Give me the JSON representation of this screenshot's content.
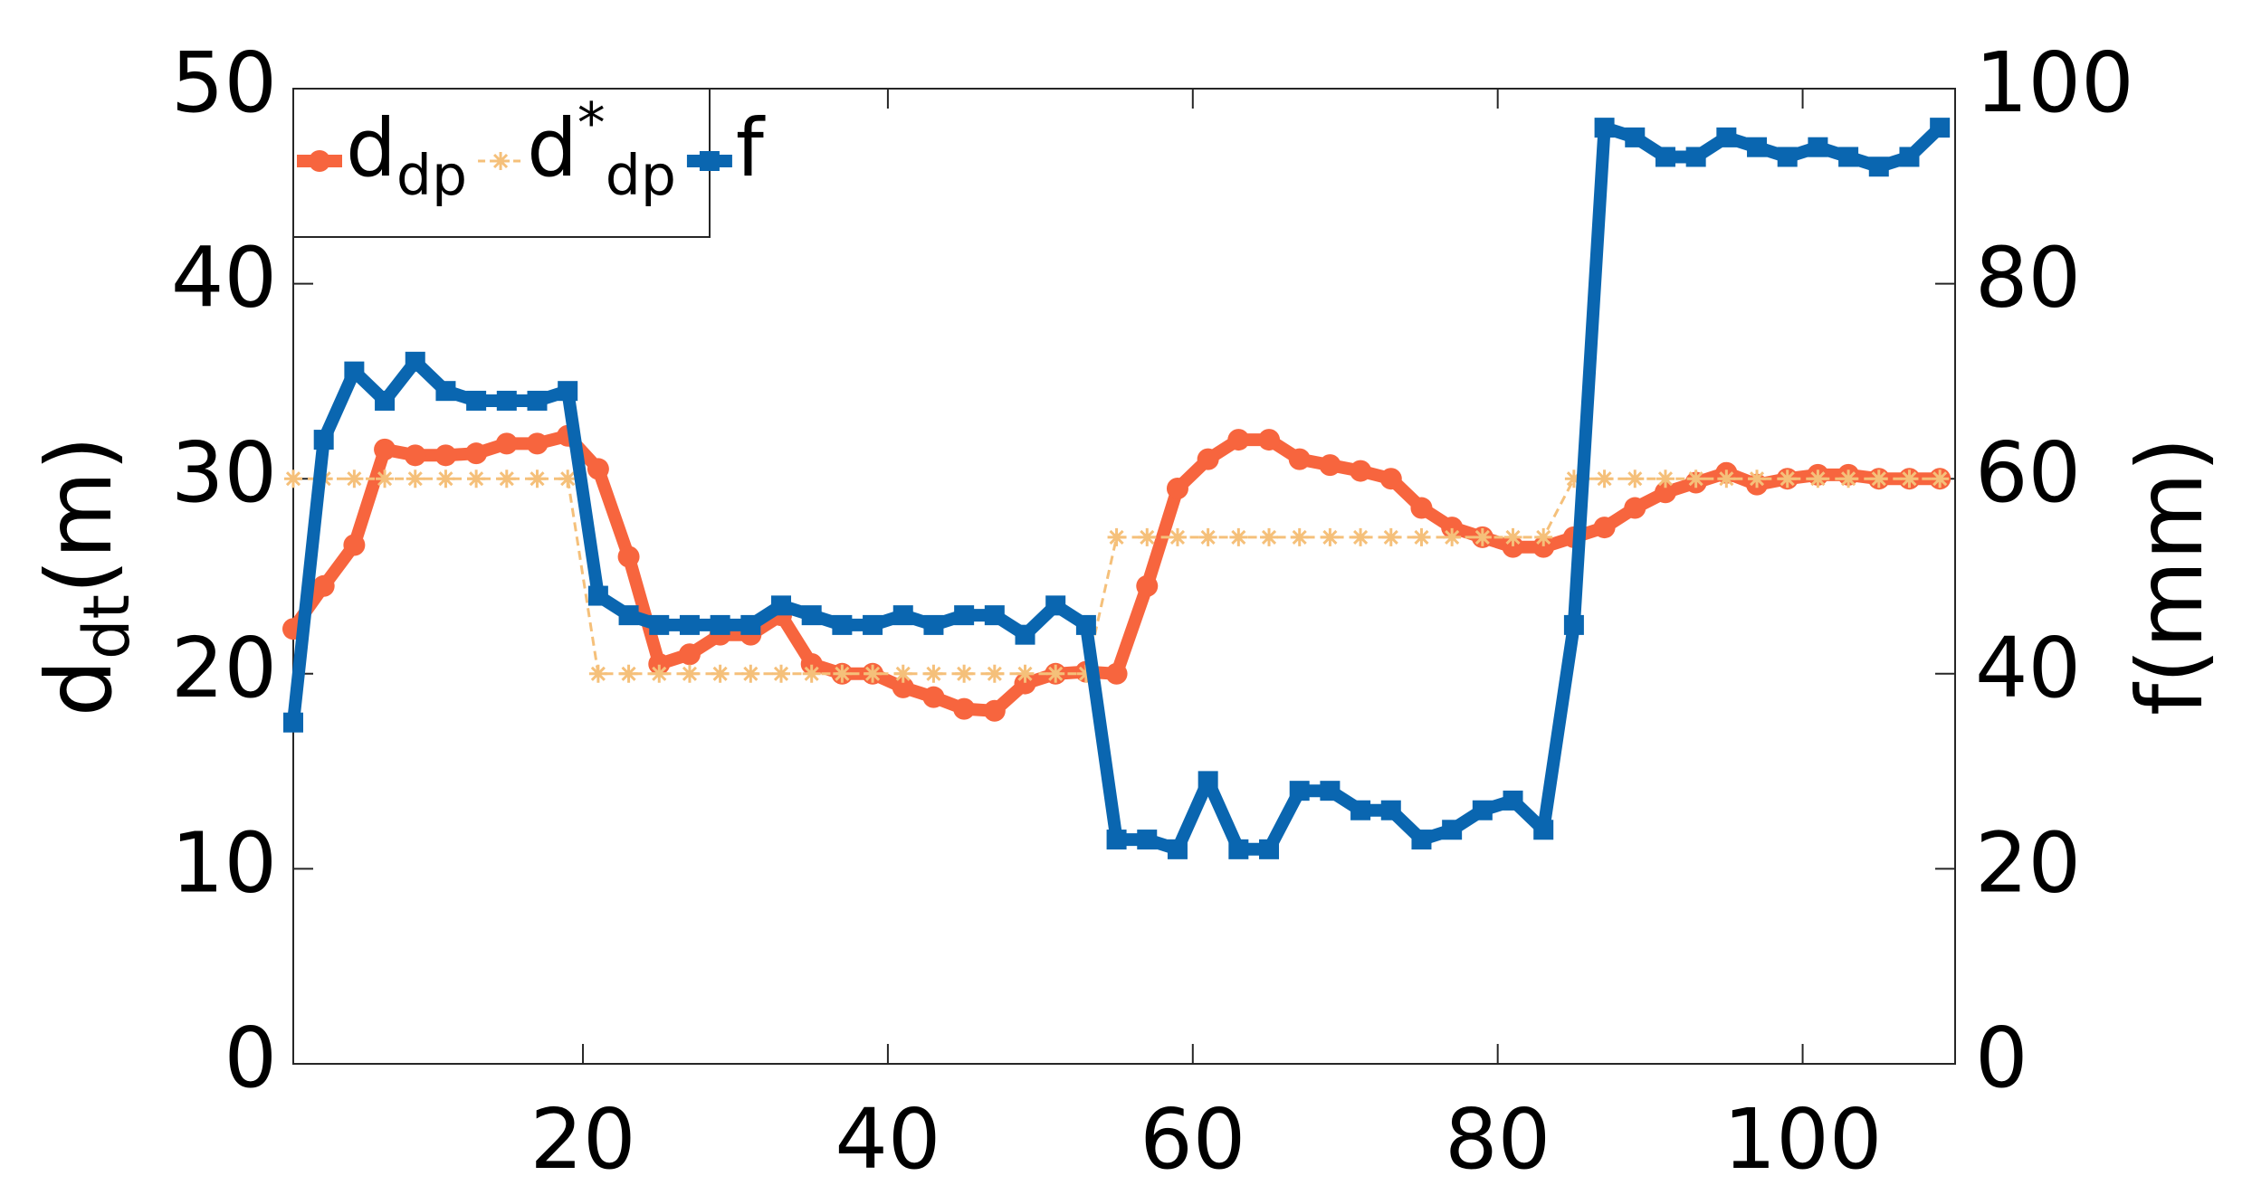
{
  "chart_data": {
    "type": "line",
    "x": [
      1,
      3,
      5,
      7,
      9,
      11,
      13,
      15,
      17,
      19,
      21,
      23,
      25,
      27,
      29,
      31,
      33,
      35,
      37,
      39,
      41,
      43,
      45,
      47,
      49,
      51,
      53,
      55,
      57,
      59,
      61,
      63,
      65,
      67,
      69,
      71,
      73,
      75,
      77,
      79,
      81,
      83,
      85,
      87,
      89,
      91,
      93,
      95,
      97,
      99,
      101,
      103,
      105,
      107,
      109
    ],
    "series": [
      {
        "name": "d_dp",
        "color": "#f7653e",
        "marker": "circle",
        "values": [
          22.3,
          24.5,
          26.6,
          31.5,
          31.2,
          31.2,
          31.3,
          31.8,
          31.8,
          32.2,
          30.5,
          26,
          20.5,
          21,
          22,
          22,
          23,
          20.5,
          20,
          20,
          19.3,
          18.8,
          18.2,
          18.1,
          19.5,
          20,
          20.1,
          20,
          24.5,
          29.5,
          31,
          32,
          32,
          31,
          30.7,
          30.4,
          30,
          28.5,
          27.5,
          27,
          26.5,
          26.5,
          27,
          27.5,
          28.5,
          29.3,
          29.8,
          30.3,
          29.7,
          30,
          30.2,
          30.2,
          30,
          30,
          30
        ]
      },
      {
        "name": "d^*_dp",
        "color": "#f5c07a",
        "marker": "asterisk",
        "dashed": true,
        "values": [
          30,
          30,
          30,
          30,
          30,
          30,
          30,
          30,
          30,
          30,
          20,
          20,
          20,
          20,
          20,
          20,
          20,
          20,
          20,
          20,
          20,
          20,
          20,
          20,
          20,
          20,
          20,
          27,
          27,
          27,
          27,
          27,
          27,
          27,
          27,
          27,
          27,
          27,
          27,
          27,
          27,
          27,
          30,
          30,
          30,
          30,
          30,
          30,
          30,
          30,
          30,
          30,
          30,
          30,
          30
        ]
      },
      {
        "name": "f",
        "color": "#0a66b0",
        "marker": "square",
        "axis": "y2",
        "values": [
          35,
          64,
          71,
          68,
          72,
          69,
          68,
          68,
          68,
          69,
          48,
          46,
          45,
          45,
          45,
          45,
          47,
          46,
          45,
          45,
          46,
          45,
          46,
          46,
          44,
          47,
          45,
          23,
          23,
          22,
          29,
          22,
          22,
          28,
          28,
          26,
          26,
          23,
          24,
          26,
          27,
          24,
          45,
          96,
          95,
          93,
          93,
          95,
          94,
          93,
          94,
          93,
          92,
          93,
          96
        ]
      }
    ],
    "xlim": [
      1,
      110
    ],
    "xticks": [
      20,
      40,
      60,
      80,
      100
    ],
    "ylim": [
      0,
      50
    ],
    "yticks": [
      0,
      10,
      20,
      30,
      40,
      50
    ],
    "y2lim": [
      0,
      100
    ],
    "y2ticks": [
      0,
      20,
      40,
      60,
      80,
      100
    ],
    "ylabel": "d_dt(m)",
    "y2label": "f(mm)",
    "legend": "upper left"
  }
}
